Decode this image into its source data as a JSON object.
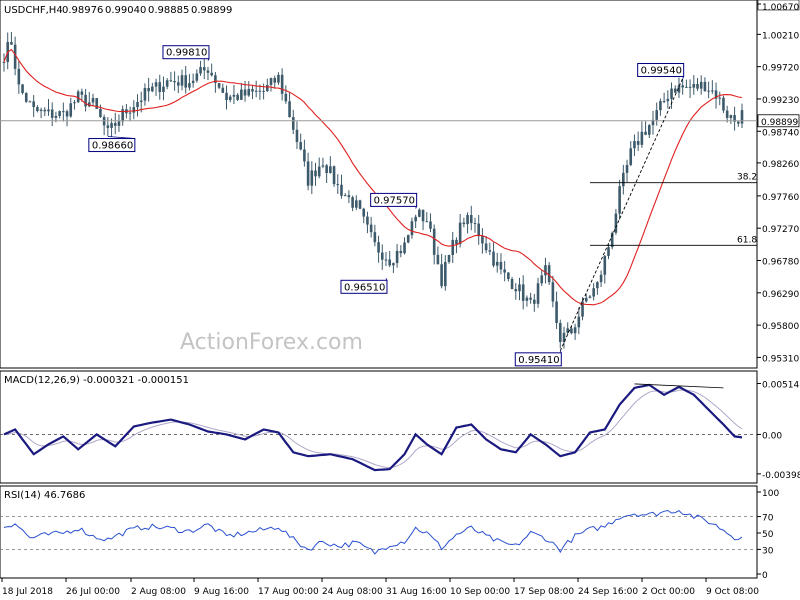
{
  "chart_data": [
    {
      "type": "candlestick",
      "title": "USDCHF,H4",
      "ohlc": [
        "0.98976",
        "0.99040",
        "0.98885",
        "0.98899"
      ],
      "watermark": "ActionForex.com",
      "ylim": [
        0.9518,
        1.0067
      ],
      "yticks": [
        "1.00670",
        "1.00210",
        "0.99720",
        "0.99230",
        "0.98740",
        "0.98260",
        "0.97760",
        "0.97270",
        "0.96780",
        "0.96290",
        "0.95800",
        "0.95310"
      ],
      "ytick_values": [
        1.0067,
        1.0021,
        0.9972,
        0.9923,
        0.9874,
        0.9826,
        0.9776,
        0.9727,
        0.9678,
        0.9629,
        0.958,
        0.9531
      ],
      "xticks": [
        "18 Jul 2018",
        "26 Jul 00:00",
        "2 Aug 08:00",
        "9 Aug 16:00",
        "17 Aug 00:00",
        "24 Aug 08:00",
        "31 Aug 16:00",
        "10 Sep 00:00",
        "17 Sep 08:00",
        "24 Sep 16:00",
        "2 Oct 00:00",
        "9 Oct 08:00"
      ],
      "current_price": {
        "label": "0.98899",
        "value": 0.98899
      },
      "annotations": [
        {
          "label": "0.99810",
          "value": 0.9981,
          "bar": 55
        },
        {
          "label": "0.98660",
          "value": 0.9866,
          "bar": 28
        },
        {
          "label": "0.96510",
          "value": 0.9651,
          "bar": 103
        },
        {
          "label": "0.97570",
          "value": 0.9757,
          "bar": 111
        },
        {
          "label": "0.95410",
          "value": 0.9541,
          "bar": 150
        },
        {
          "label": "0.99540",
          "value": 0.9954,
          "bar": 183
        }
      ],
      "fibonacci": [
        {
          "label": "38.2",
          "value": 0.9796
        },
        {
          "label": "61.8",
          "value": 0.9701
        }
      ],
      "trendline": {
        "from_bar": 150,
        "from_value": 0.9541,
        "to_bar": 183,
        "to_value": 0.9954
      },
      "close_keypoints": [
        [
          0,
          0.999
        ],
        [
          2,
          1.001
        ],
        [
          4,
          0.994
        ],
        [
          8,
          0.9905
        ],
        [
          12,
          0.99
        ],
        [
          16,
          0.99
        ],
        [
          20,
          0.9925
        ],
        [
          24,
          0.9915
        ],
        [
          28,
          0.987
        ],
        [
          32,
          0.99
        ],
        [
          38,
          0.993
        ],
        [
          44,
          0.995
        ],
        [
          50,
          0.995
        ],
        [
          55,
          0.997
        ],
        [
          60,
          0.9925
        ],
        [
          66,
          0.993
        ],
        [
          70,
          0.9935
        ],
        [
          74,
          0.9955
        ],
        [
          78,
          0.988
        ],
        [
          82,
          0.98
        ],
        [
          86,
          0.983
        ],
        [
          90,
          0.979
        ],
        [
          95,
          0.976
        ],
        [
          100,
          0.97
        ],
        [
          104,
          0.968
        ],
        [
          108,
          0.97
        ],
        [
          111,
          0.975
        ],
        [
          114,
          0.974
        ],
        [
          118,
          0.965
        ],
        [
          121,
          0.97
        ],
        [
          124,
          0.974
        ],
        [
          127,
          0.973
        ],
        [
          130,
          0.97
        ],
        [
          134,
          0.966
        ],
        [
          138,
          0.964
        ],
        [
          142,
          0.961
        ],
        [
          146,
          0.966
        ],
        [
          150,
          0.956
        ],
        [
          153,
          0.957
        ],
        [
          157,
          0.962
        ],
        [
          160,
          0.964
        ],
        [
          163,
          0.97
        ],
        [
          166,
          0.978
        ],
        [
          169,
          0.984
        ],
        [
          172,
          0.987
        ],
        [
          175,
          0.989
        ],
        [
          178,
          0.992
        ],
        [
          180,
          0.994
        ],
        [
          183,
          0.994
        ],
        [
          186,
          0.994
        ],
        [
          189,
          0.9945
        ],
        [
          192,
          0.993
        ],
        [
          195,
          0.99
        ],
        [
          197,
          0.989
        ],
        [
          199,
          0.99
        ]
      ]
    },
    {
      "type": "line",
      "title": "MACD(12,26,9) -0.000321 -0.000151",
      "ylim": [
        -0.0046,
        0.0059
      ],
      "yticks": [
        "0.005141",
        "0.00",
        "-0.003982"
      ],
      "ytick_values": [
        0.005141,
        0,
        -0.003982
      ],
      "zero_line": 0,
      "series_keypoints": [
        [
          0,
          0.0
        ],
        [
          3,
          0.0005
        ],
        [
          8,
          -0.002
        ],
        [
          12,
          -0.001
        ],
        [
          16,
          -0.0002
        ],
        [
          20,
          -0.0015
        ],
        [
          25,
          0.0
        ],
        [
          30,
          -0.0012
        ],
        [
          35,
          0.0008
        ],
        [
          40,
          0.0012
        ],
        [
          45,
          0.0015
        ],
        [
          50,
          0.001
        ],
        [
          55,
          0.0003
        ],
        [
          60,
          0.0
        ],
        [
          65,
          -0.0005
        ],
        [
          70,
          0.0005
        ],
        [
          74,
          0.0002
        ],
        [
          78,
          -0.0018
        ],
        [
          82,
          -0.0022
        ],
        [
          88,
          -0.002
        ],
        [
          94,
          -0.0025
        ],
        [
          100,
          -0.0036
        ],
        [
          104,
          -0.0035
        ],
        [
          108,
          -0.002
        ],
        [
          111,
          0.0
        ],
        [
          114,
          -0.001
        ],
        [
          118,
          -0.002
        ],
        [
          122,
          0.0007
        ],
        [
          126,
          0.001
        ],
        [
          130,
          -0.0005
        ],
        [
          134,
          -0.0015
        ],
        [
          138,
          -0.0018
        ],
        [
          142,
          0.0
        ],
        [
          146,
          -0.001
        ],
        [
          150,
          -0.0022
        ],
        [
          154,
          -0.0018
        ],
        [
          158,
          0.0002
        ],
        [
          162,
          0.0005
        ],
        [
          166,
          0.003
        ],
        [
          170,
          0.0047
        ],
        [
          174,
          0.005
        ],
        [
          178,
          0.004
        ],
        [
          182,
          0.0048
        ],
        [
          186,
          0.004
        ],
        [
          190,
          0.0025
        ],
        [
          194,
          0.001
        ],
        [
          197,
          -0.0002
        ],
        [
          199,
          -0.0003
        ]
      ]
    },
    {
      "type": "line",
      "title": "RSI(14) 46.7686",
      "ylim": [
        0,
        100
      ],
      "yticks": [
        "100",
        "70",
        "50",
        "30",
        "0"
      ],
      "ytick_values": [
        100,
        70,
        50,
        30,
        0
      ],
      "levels": [
        70,
        30
      ],
      "series_keypoints": [
        [
          0,
          58
        ],
        [
          3,
          62
        ],
        [
          7,
          44
        ],
        [
          12,
          48
        ],
        [
          16,
          50
        ],
        [
          20,
          56
        ],
        [
          24,
          46
        ],
        [
          28,
          42
        ],
        [
          33,
          52
        ],
        [
          38,
          58
        ],
        [
          44,
          56
        ],
        [
          50,
          52
        ],
        [
          55,
          60
        ],
        [
          60,
          46
        ],
        [
          65,
          50
        ],
        [
          70,
          54
        ],
        [
          74,
          58
        ],
        [
          78,
          42
        ],
        [
          82,
          30
        ],
        [
          86,
          40
        ],
        [
          90,
          34
        ],
        [
          95,
          38
        ],
        [
          100,
          26
        ],
        [
          104,
          36
        ],
        [
          108,
          40
        ],
        [
          111,
          56
        ],
        [
          114,
          50
        ],
        [
          118,
          32
        ],
        [
          122,
          48
        ],
        [
          126,
          56
        ],
        [
          130,
          46
        ],
        [
          134,
          38
        ],
        [
          138,
          34
        ],
        [
          142,
          50
        ],
        [
          146,
          44
        ],
        [
          150,
          30
        ],
        [
          154,
          46
        ],
        [
          158,
          54
        ],
        [
          162,
          58
        ],
        [
          166,
          70
        ],
        [
          170,
          74
        ],
        [
          174,
          72
        ],
        [
          178,
          76
        ],
        [
          182,
          78
        ],
        [
          186,
          70
        ],
        [
          190,
          64
        ],
        [
          194,
          54
        ],
        [
          197,
          44
        ],
        [
          199,
          47
        ]
      ]
    }
  ]
}
